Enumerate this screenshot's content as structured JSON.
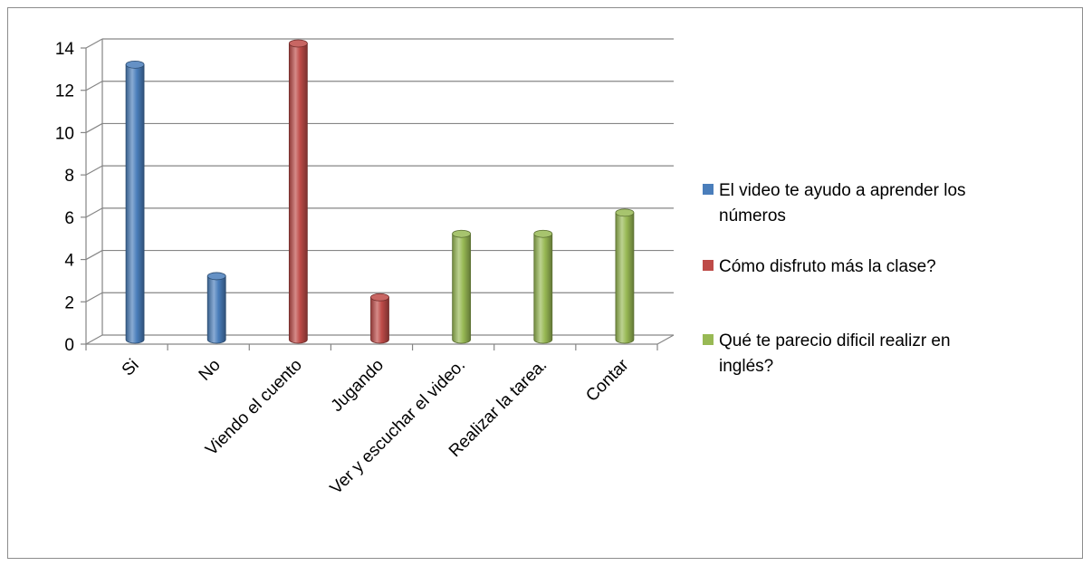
{
  "chart_data": {
    "type": "bar",
    "title": "",
    "xlabel": "",
    "ylabel": "",
    "ylim": [
      0,
      14
    ],
    "yticks": [
      0,
      2,
      4,
      6,
      8,
      10,
      12,
      14
    ],
    "grid": true,
    "legend_position": "right",
    "categories": [
      "Si",
      "No",
      "Viendo el cuento",
      "Jugando",
      "Ver y escuchar el video.",
      "Realizar la tarea.",
      "Contar"
    ],
    "series": [
      {
        "name": "El video te ayudo  a aprender los números",
        "legend_lines": [
          "El video te ayudo  a aprender los",
          "números"
        ],
        "color": "#4a7ebb",
        "values": [
          13,
          3,
          null,
          null,
          null,
          null,
          null
        ]
      },
      {
        "name": "Cómo disfruto más la clase?",
        "legend_lines": [
          "Cómo disfruto más la clase?"
        ],
        "color": "#be4b48",
        "values": [
          null,
          null,
          14,
          2,
          null,
          null,
          null
        ]
      },
      {
        "name": "Qué  te parecio dificil realizr  en inglés?",
        "legend_lines": [
          "Qué  te parecio dificil realizr  en",
          "inglés?"
        ],
        "color": "#98b954",
        "values": [
          null,
          null,
          null,
          null,
          5,
          5,
          6
        ]
      }
    ]
  }
}
